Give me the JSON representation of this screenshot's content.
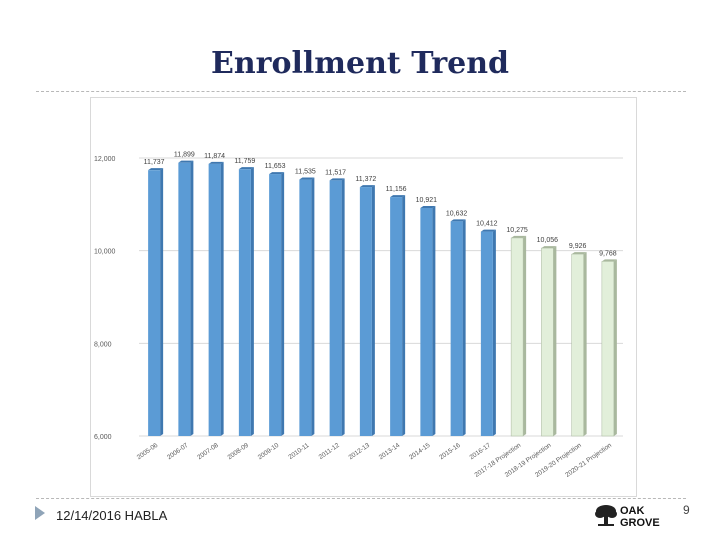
{
  "slide": {
    "title": "Enrollment Trend",
    "footer": "12/14/2016 HABLA",
    "page_number": "9",
    "logo_text_line1": "OAK",
    "logo_text_line2": "GROVE"
  },
  "colors": {
    "title": "#1f2a5c",
    "actual_bar": "#5b9bd5",
    "actual_bar_shade": "#3f78b0",
    "projection_bar": "#e2efda",
    "projection_bar_shade": "#a9b89e"
  },
  "chart_data": {
    "type": "bar",
    "title": "",
    "xlabel": "",
    "ylabel": "",
    "ylim": [
      6000,
      12000
    ],
    "yticks": [
      6000,
      8000,
      10000,
      12000
    ],
    "ytick_labels": [
      "6,000",
      "8,000",
      "10,000",
      "12,000"
    ],
    "grid": true,
    "legend": "none",
    "categories": [
      "2005-06",
      "2006-07",
      "2007-08",
      "2008-09",
      "2009-10",
      "2010-11",
      "2011-12",
      "2012-13",
      "2013-14",
      "2014-15",
      "2015-16",
      "2016-17",
      "2017-18 Projection",
      "2018-19 Projection",
      "2019-20 Projection",
      "2020-21 Projection"
    ],
    "values": [
      11737,
      11899,
      11874,
      11759,
      11653,
      11535,
      11517,
      11372,
      11156,
      10921,
      10632,
      10412,
      10275,
      10056,
      9926,
      9768
    ],
    "data_labels": [
      "11,737",
      "11,899",
      "11,874",
      "11,759",
      "11,653",
      "11,535",
      "11,517",
      "11,372",
      "11,156",
      "10,921",
      "10,632",
      "10,412",
      "10,275",
      "10,056",
      "9,926",
      "9,768"
    ],
    "projection_flags": [
      false,
      false,
      false,
      false,
      false,
      false,
      false,
      false,
      false,
      false,
      false,
      false,
      true,
      true,
      true,
      true
    ]
  }
}
